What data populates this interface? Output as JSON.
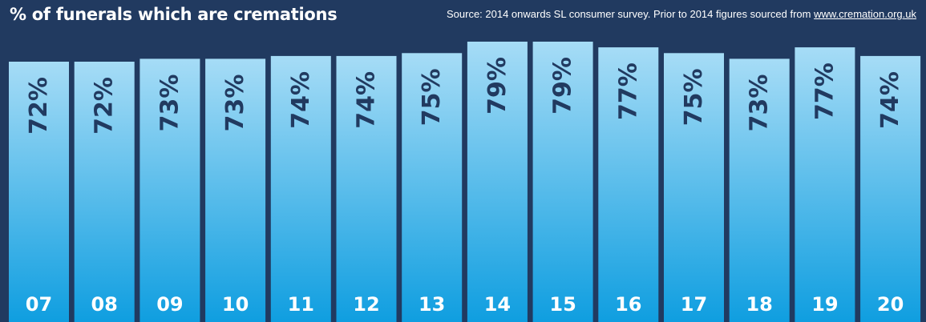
{
  "chart_data": {
    "type": "bar",
    "title": "% of funerals which are cremations",
    "source": {
      "text": "Source: 2014 onwards SL consumer survey. Prior to 2014 figures sourced from ",
      "link": "www.cremation.org.uk"
    },
    "categories": [
      "07",
      "08",
      "09",
      "10",
      "11",
      "12",
      "13",
      "14",
      "15",
      "16",
      "17",
      "18",
      "19",
      "20"
    ],
    "values": [
      72,
      72,
      73,
      73,
      74,
      74,
      75,
      79,
      79,
      77,
      75,
      73,
      77,
      74
    ],
    "value_labels": [
      "72%",
      "72%",
      "73%",
      "73%",
      "74%",
      "74%",
      "75%",
      "79%",
      "79%",
      "77%",
      "75%",
      "73%",
      "77%",
      "74%"
    ],
    "colors": {
      "background": "#213a60",
      "bar_top": "#a6dcf6",
      "bar_bottom": "#0f9ee0",
      "value_text": "#213a60",
      "year_text": "#ffffff"
    }
  }
}
